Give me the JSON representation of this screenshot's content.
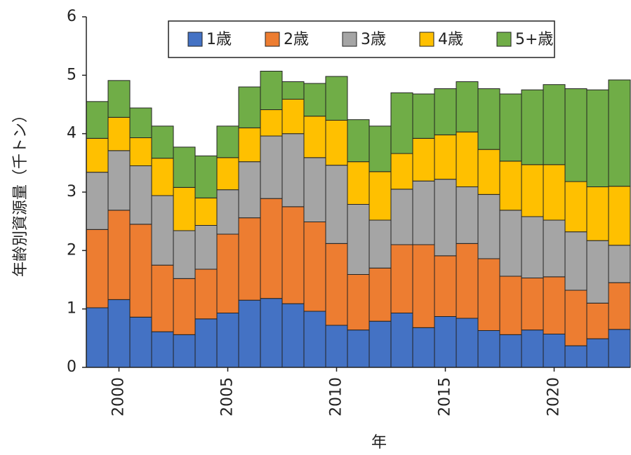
{
  "chart_data": {
    "type": "stacked_bar",
    "x_label": "年",
    "y_label": "年齢別資源量（千トン）",
    "x": [
      1999,
      2000,
      2001,
      2002,
      2003,
      2004,
      2005,
      2006,
      2007,
      2008,
      2009,
      2010,
      2011,
      2012,
      2013,
      2014,
      2015,
      2016,
      2017,
      2018,
      2019,
      2020,
      2021,
      2022,
      2023
    ],
    "series": [
      {
        "name": "1歳",
        "color": "#4472c4",
        "values": [
          1.02,
          1.16,
          0.86,
          0.61,
          0.56,
          0.83,
          0.93,
          1.15,
          1.18,
          1.09,
          0.96,
          0.72,
          0.64,
          0.79,
          0.93,
          0.68,
          0.87,
          0.84,
          0.63,
          0.56,
          0.64,
          0.57,
          0.37,
          0.49,
          0.65
        ]
      },
      {
        "name": "2歳",
        "color": "#ed7d31",
        "values": [
          1.34,
          1.53,
          1.59,
          1.14,
          0.96,
          0.85,
          1.35,
          1.41,
          1.71,
          1.66,
          1.53,
          1.4,
          0.95,
          0.91,
          1.17,
          1.42,
          1.04,
          1.28,
          1.23,
          1.0,
          0.89,
          0.98,
          0.95,
          0.61,
          0.8
        ]
      },
      {
        "name": "3歳",
        "color": "#a5a5a5",
        "values": [
          0.98,
          1.02,
          1.0,
          1.19,
          0.82,
          0.75,
          0.76,
          0.96,
          1.07,
          1.25,
          1.1,
          1.34,
          1.2,
          0.82,
          0.95,
          1.09,
          1.31,
          0.97,
          1.1,
          1.13,
          1.05,
          0.97,
          1.0,
          1.07,
          0.64
        ]
      },
      {
        "name": "4歳",
        "color": "#ffc000",
        "values": [
          0.58,
          0.57,
          0.48,
          0.64,
          0.74,
          0.47,
          0.55,
          0.58,
          0.45,
          0.59,
          0.71,
          0.77,
          0.73,
          0.83,
          0.61,
          0.73,
          0.76,
          0.94,
          0.77,
          0.84,
          0.89,
          0.95,
          0.86,
          0.92,
          1.01
        ]
      },
      {
        "name": "5+歳",
        "color": "#70ad47",
        "values": [
          0.63,
          0.63,
          0.51,
          0.55,
          0.69,
          0.72,
          0.54,
          0.7,
          0.66,
          0.3,
          0.56,
          0.75,
          0.72,
          0.78,
          1.04,
          0.76,
          0.79,
          0.86,
          1.04,
          1.15,
          1.28,
          1.37,
          1.59,
          1.66,
          1.82
        ]
      }
    ],
    "xlim": [
      1998.5,
      2023.5
    ],
    "xticks": [
      2000,
      2005,
      2010,
      2015,
      2020
    ],
    "ylim": [
      0,
      6
    ],
    "yticks": [
      0,
      1,
      2,
      3,
      4,
      5,
      6
    ],
    "legend": "top"
  }
}
